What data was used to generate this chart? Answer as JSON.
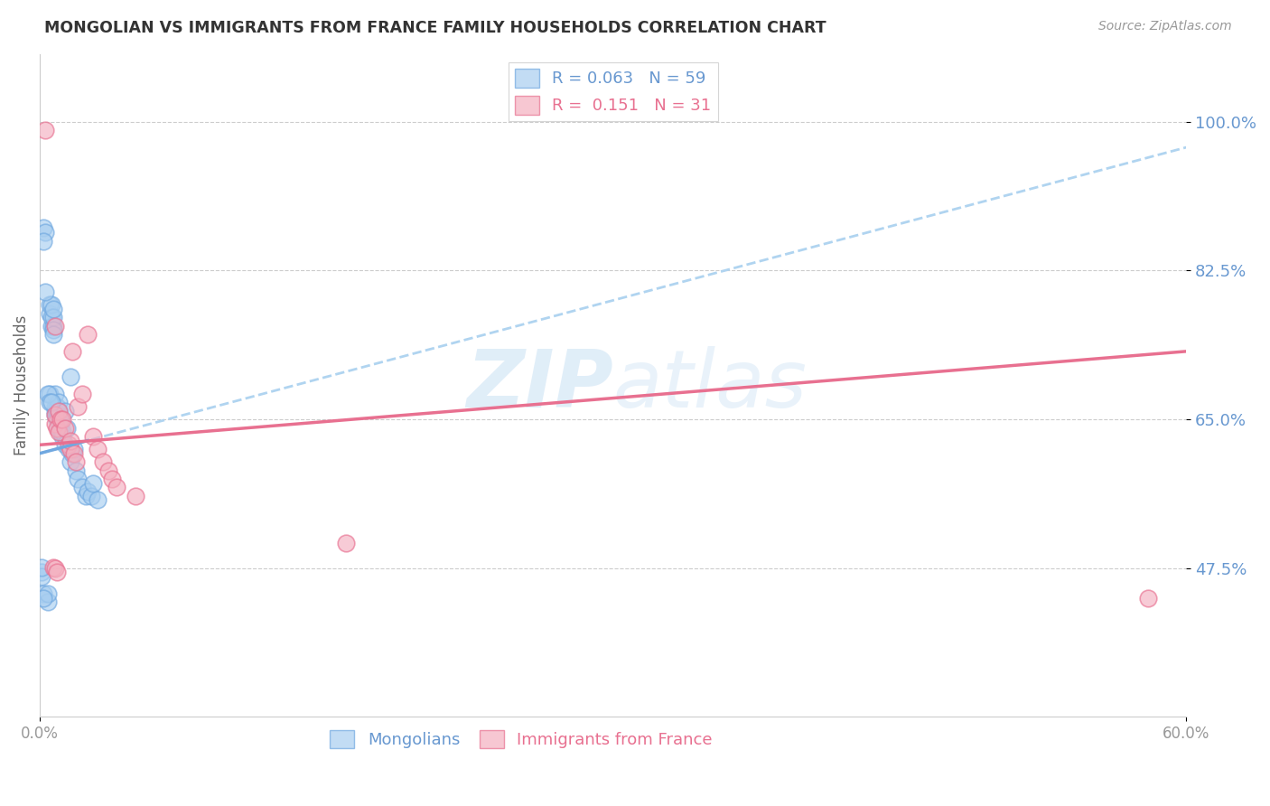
{
  "title": "MONGOLIAN VS IMMIGRANTS FROM FRANCE FAMILY HOUSEHOLDS CORRELATION CHART",
  "source": "Source: ZipAtlas.com",
  "ylabel": "Family Households",
  "x_min": 0.0,
  "x_max": 0.6,
  "y_min": 0.3,
  "y_max": 1.08,
  "yticks": [
    0.475,
    0.65,
    0.825,
    1.0
  ],
  "ytick_labels": [
    "47.5%",
    "65.0%",
    "82.5%",
    "100.0%"
  ],
  "xtick_vals": [
    0.0,
    0.6
  ],
  "xtick_labels": [
    "0.0%",
    "60.0%"
  ],
  "legend_R_blue": "0.063",
  "legend_N_blue": "59",
  "legend_R_pink": "0.151",
  "legend_N_pink": "31",
  "color_blue_fill": "#A8CEF0",
  "color_pink_fill": "#F4B0C0",
  "color_blue_edge": "#70A8E0",
  "color_pink_edge": "#E87090",
  "color_blue_line": "#70A8E0",
  "color_blue_dashed": "#B0D4F0",
  "color_pink_line": "#E87090",
  "color_axis_labels": "#6898D0",
  "watermark_color": "#C8E0F4",
  "blue_x": [
    0.001,
    0.002,
    0.002,
    0.003,
    0.004,
    0.004,
    0.005,
    0.005,
    0.005,
    0.006,
    0.006,
    0.006,
    0.007,
    0.007,
    0.007,
    0.007,
    0.008,
    0.008,
    0.008,
    0.008,
    0.009,
    0.009,
    0.009,
    0.009,
    0.01,
    0.01,
    0.01,
    0.01,
    0.01,
    0.011,
    0.011,
    0.011,
    0.012,
    0.012,
    0.013,
    0.013,
    0.014,
    0.015,
    0.016,
    0.016,
    0.017,
    0.018,
    0.019,
    0.02,
    0.022,
    0.024,
    0.025,
    0.027,
    0.028,
    0.03,
    0.001,
    0.001,
    0.002,
    0.002,
    0.003,
    0.004,
    0.005,
    0.006,
    0.007
  ],
  "blue_y": [
    0.47,
    0.445,
    0.875,
    0.87,
    0.435,
    0.445,
    0.775,
    0.785,
    0.68,
    0.76,
    0.77,
    0.785,
    0.76,
    0.77,
    0.78,
    0.755,
    0.655,
    0.66,
    0.665,
    0.68,
    0.65,
    0.655,
    0.66,
    0.665,
    0.64,
    0.65,
    0.655,
    0.66,
    0.67,
    0.635,
    0.64,
    0.645,
    0.63,
    0.635,
    0.62,
    0.66,
    0.64,
    0.615,
    0.6,
    0.7,
    0.61,
    0.615,
    0.59,
    0.58,
    0.57,
    0.56,
    0.565,
    0.56,
    0.575,
    0.555,
    0.465,
    0.476,
    0.44,
    0.86,
    0.8,
    0.68,
    0.67,
    0.67,
    0.75
  ],
  "pink_x": [
    0.003,
    0.007,
    0.008,
    0.008,
    0.008,
    0.009,
    0.01,
    0.01,
    0.011,
    0.012,
    0.013,
    0.015,
    0.016,
    0.016,
    0.017,
    0.018,
    0.019,
    0.02,
    0.022,
    0.025,
    0.028,
    0.03,
    0.033,
    0.036,
    0.038,
    0.04,
    0.05,
    0.16,
    0.58,
    0.008,
    0.009
  ],
  "pink_y": [
    0.99,
    0.476,
    0.645,
    0.655,
    0.76,
    0.64,
    0.66,
    0.635,
    0.65,
    0.65,
    0.64,
    0.62,
    0.615,
    0.625,
    0.73,
    0.61,
    0.6,
    0.665,
    0.68,
    0.75,
    0.63,
    0.615,
    0.6,
    0.59,
    0.58,
    0.57,
    0.56,
    0.505,
    0.44,
    0.475,
    0.47
  ],
  "blue_trend_x": [
    0.0,
    0.6
  ],
  "blue_trend_y": [
    0.61,
    0.97
  ],
  "pink_trend_x": [
    0.0,
    0.6
  ],
  "pink_trend_y": [
    0.62,
    0.73
  ]
}
